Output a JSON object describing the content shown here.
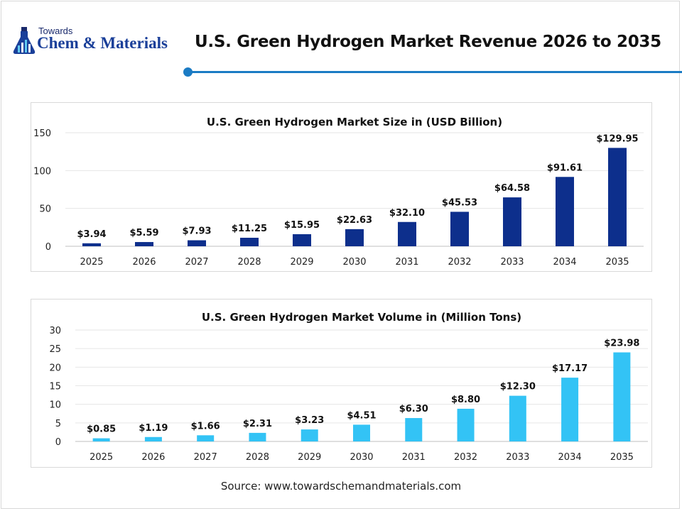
{
  "header": {
    "logo_top": "Towards",
    "logo_main": "Chem & Materials",
    "title": "U.S. Green Hydrogen Market Revenue 2026 to 2035"
  },
  "source": "Source: www.towardschemandmaterials.com",
  "colors": {
    "accent": "#1b7bc4",
    "series1": "#0d2f8c",
    "series2": "#33c3f5"
  },
  "chart_data": [
    {
      "type": "bar",
      "title": "U.S. Green Hydrogen Market Size in (USD Billion)",
      "categories": [
        "2025",
        "2026",
        "2027",
        "2028",
        "2029",
        "2030",
        "2031",
        "2032",
        "2033",
        "2034",
        "2035"
      ],
      "values": [
        3.94,
        5.59,
        7.93,
        11.25,
        15.95,
        22.63,
        32.1,
        45.53,
        64.58,
        91.61,
        129.95
      ],
      "data_labels": [
        "$3.94",
        "$5.59",
        "$7.93",
        "$11.25",
        "$15.95",
        "$22.63",
        "$32.10",
        "$45.53",
        "$64.58",
        "$91.61",
        "$129.95"
      ],
      "yticks": [
        0,
        50,
        100,
        150
      ],
      "ylim": [
        0,
        150
      ],
      "grid": true,
      "color": "#0d2f8c"
    },
    {
      "type": "bar",
      "title": "U.S. Green Hydrogen Market Volume in (Million Tons)",
      "categories": [
        "2025",
        "2026",
        "2027",
        "2028",
        "2029",
        "2030",
        "2031",
        "2032",
        "2033",
        "2034",
        "2035"
      ],
      "values": [
        0.85,
        1.19,
        1.66,
        2.31,
        3.23,
        4.51,
        6.3,
        8.8,
        12.3,
        17.17,
        23.98
      ],
      "data_labels": [
        "$0.85",
        "$1.19",
        "$1.66",
        "$2.31",
        "$3.23",
        "$4.51",
        "$6.30",
        "$8.80",
        "$12.30",
        "$17.17",
        "$23.98"
      ],
      "yticks": [
        0,
        5,
        10,
        15,
        20,
        25,
        30
      ],
      "ylim": [
        0,
        30
      ],
      "grid": true,
      "color": "#33c3f5"
    }
  ]
}
